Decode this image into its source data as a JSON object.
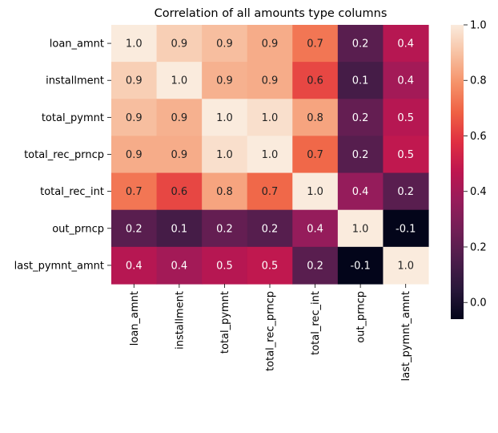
{
  "chart_data": {
    "type": "heatmap",
    "title": "Correlation of all amounts type columns",
    "rows": [
      "loan_amnt",
      "installment",
      "total_pymnt",
      "total_rec_prncp",
      "total_rec_int",
      "out_prncp",
      "last_pymnt_amnt"
    ],
    "cols": [
      "loan_amnt",
      "installment",
      "total_pymnt",
      "total_rec_prncp",
      "total_rec_int",
      "out_prncp",
      "last_pymnt_amnt"
    ],
    "values": [
      [
        1.0,
        0.93,
        0.89,
        0.85,
        0.73,
        0.19,
        0.45
      ],
      [
        0.93,
        1.0,
        0.86,
        0.85,
        0.63,
        0.13,
        0.4
      ],
      [
        0.89,
        0.86,
        1.0,
        0.97,
        0.83,
        0.22,
        0.45
      ],
      [
        0.85,
        0.85,
        0.97,
        1.0,
        0.7,
        0.18,
        0.48
      ],
      [
        0.73,
        0.63,
        0.83,
        0.7,
        1.0,
        0.36,
        0.19
      ],
      [
        0.19,
        0.13,
        0.22,
        0.18,
        0.36,
        1.0,
        -0.06
      ],
      [
        0.45,
        0.4,
        0.45,
        0.48,
        0.19,
        -0.06,
        1.0
      ]
    ],
    "annotations": [
      [
        "1.0",
        "0.9",
        "0.9",
        "0.9",
        "0.7",
        "0.2",
        "0.4"
      ],
      [
        "0.9",
        "1.0",
        "0.9",
        "0.9",
        "0.6",
        "0.1",
        "0.4"
      ],
      [
        "0.9",
        "0.9",
        "1.0",
        "1.0",
        "0.8",
        "0.2",
        "0.5"
      ],
      [
        "0.9",
        "0.9",
        "1.0",
        "1.0",
        "0.7",
        "0.2",
        "0.5"
      ],
      [
        "0.7",
        "0.6",
        "0.8",
        "0.7",
        "1.0",
        "0.4",
        "0.2"
      ],
      [
        "0.2",
        "0.1",
        "0.2",
        "0.2",
        "0.4",
        "1.0",
        "-0.1"
      ],
      [
        "0.4",
        "0.4",
        "0.5",
        "0.5",
        "0.2",
        "-0.1",
        "1.0"
      ]
    ],
    "colorbar": {
      "range": [
        -0.06,
        1.0
      ],
      "ticks": [
        "0.0",
        "0.2",
        "0.4",
        "0.6",
        "0.8",
        "1.0"
      ],
      "tick_values": [
        0.0,
        0.2,
        0.4,
        0.6,
        0.8,
        1.0
      ],
      "colormap": "rocket"
    },
    "grid": false
  }
}
